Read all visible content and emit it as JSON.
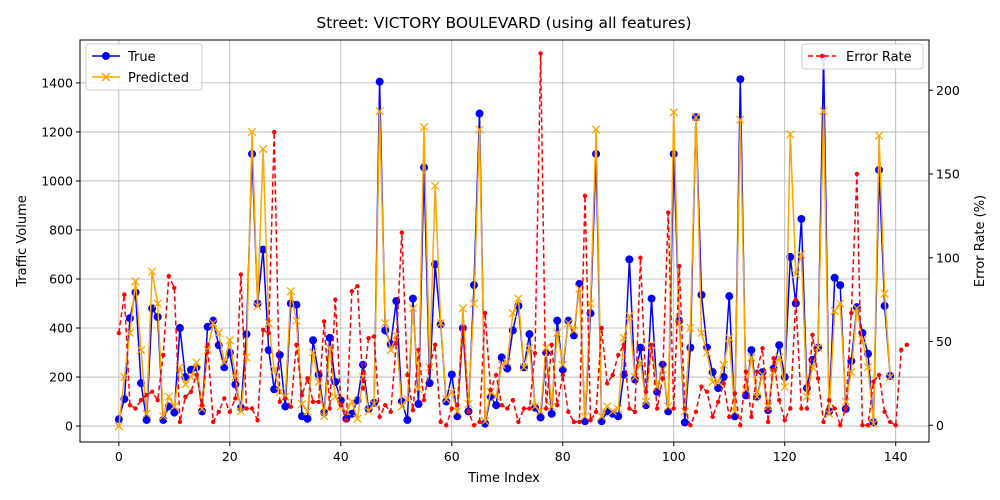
{
  "chart_data": {
    "type": "line",
    "title": "Street: VICTORY BOULEVARD (using all features)",
    "xlabel": "Time Index",
    "ylabel": "Traffic Volume",
    "y2label": "Error Rate (%)",
    "xlim": [
      -7,
      146
    ],
    "ylim": [
      -65,
      1575
    ],
    "y2lim": [
      -10,
      230
    ],
    "xticks": [
      "0",
      "20",
      "40",
      "60",
      "80",
      "100",
      "120",
      "140"
    ],
    "yticks": [
      "0",
      "200",
      "400",
      "600",
      "800",
      "1000",
      "1200",
      "1400"
    ],
    "y2ticks": [
      "0",
      "50",
      "100",
      "150",
      "200"
    ],
    "grid": true,
    "legend_left_position": "upper-left",
    "legend_right_position": "upper-right",
    "series": [
      {
        "name": "True",
        "color": "#0000ff",
        "marker": "circle",
        "axis": "left",
        "values": [
          28,
          110,
          440,
          545,
          175,
          25,
          480,
          445,
          25,
          80,
          55,
          400,
          200,
          230,
          240,
          60,
          405,
          430,
          330,
          240,
          300,
          170,
          75,
          375,
          1110,
          500,
          720,
          310,
          150,
          290,
          80,
          500,
          495,
          40,
          30,
          350,
          210,
          55,
          360,
          180,
          105,
          30,
          50,
          105,
          250,
          70,
          95,
          1405,
          390,
          335,
          510,
          100,
          25,
          520,
          90,
          1055,
          175,
          660,
          415,
          100,
          210,
          40,
          400,
          60,
          575,
          1275,
          10,
          120,
          85,
          280,
          235,
          390,
          490,
          240,
          375,
          75,
          35,
          300,
          50,
          430,
          230,
          430,
          370,
          580,
          20,
          460,
          1110,
          20,
          60,
          50,
          40,
          210,
          680,
          190,
          320,
          85,
          520,
          140,
          250,
          60,
          1110,
          430,
          15,
          320,
          1260,
          535,
          320,
          220,
          155,
          200,
          530,
          40,
          1415,
          125,
          310,
          120,
          220,
          65,
          235,
          330,
          200,
          690,
          500,
          845,
          155,
          270,
          320,
          1505,
          60,
          605,
          575,
          70,
          265,
          485,
          380,
          295,
          15,
          1045,
          490,
          205
        ]
      },
      {
        "name": "Predicted",
        "color": "#ffa500",
        "marker": "x",
        "axis": "left",
        "values": [
          0,
          200,
          380,
          590,
          310,
          50,
          630,
          500,
          40,
          120,
          80,
          240,
          170,
          200,
          260,
          70,
          310,
          420,
          380,
          260,
          350,
          200,
          60,
          280,
          1200,
          490,
          1130,
          420,
          230,
          140,
          120,
          550,
          430,
          90,
          60,
          300,
          180,
          40,
          320,
          120,
          80,
          60,
          100,
          30,
          200,
          60,
          90,
          1285,
          420,
          310,
          370,
          80,
          110,
          480,
          150,
          1220,
          240,
          980,
          420,
          110,
          140,
          60,
          480,
          90,
          500,
          1210,
          20,
          140,
          120,
          250,
          260,
          460,
          520,
          240,
          320,
          80,
          60,
          320,
          80,
          380,
          250,
          420,
          390,
          560,
          40,
          500,
          1210,
          40,
          80,
          60,
          70,
          360,
          450,
          200,
          260,
          100,
          330,
          160,
          230,
          80,
          1280,
          420,
          60,
          400,
          1260,
          380,
          300,
          180,
          180,
          250,
          360,
          60,
          1250,
          150,
          280,
          120,
          210,
          80,
          220,
          280,
          160,
          1190,
          620,
          700,
          120,
          240,
          320,
          1285,
          50,
          470,
          500,
          100,
          220,
          480,
          350,
          240,
          10,
          1185,
          540,
          200
        ]
      },
      {
        "name": "Error Rate",
        "color": "#ff0000",
        "marker": "dot",
        "axis": "right",
        "values": [
          55,
          78,
          12,
          10,
          15,
          18,
          20,
          15,
          42,
          89,
          82,
          2,
          17,
          20,
          30,
          12,
          48,
          2,
          8,
          16,
          8,
          16,
          90,
          10,
          10,
          3,
          57,
          55,
          175,
          14,
          16,
          11,
          48,
          18,
          28,
          14,
          14,
          62,
          10,
          75,
          12,
          3,
          80,
          83,
          22,
          52,
          53,
          5,
          12,
          8,
          49,
          115,
          30,
          9,
          45,
          15,
          35,
          48,
          2,
          0,
          10,
          12,
          58,
          8,
          0,
          2,
          67,
          21,
          30,
          12,
          10,
          15,
          2,
          10,
          10,
          43,
          222,
          10,
          48,
          12,
          30,
          8,
          2,
          2,
          137,
          3,
          8,
          58,
          25,
          30,
          42,
          48,
          10,
          8,
          100,
          20,
          48,
          10,
          28,
          127,
          10,
          95,
          10,
          0,
          8,
          23,
          20,
          5,
          14,
          25,
          5,
          19,
          0,
          32,
          5,
          32,
          46,
          2,
          40,
          15,
          3,
          10,
          75,
          10,
          10,
          54,
          28,
          2,
          15,
          10,
          0,
          10,
          67,
          150,
          0,
          0,
          26,
          30,
          8,
          2,
          0,
          45,
          48
        ]
      }
    ]
  }
}
